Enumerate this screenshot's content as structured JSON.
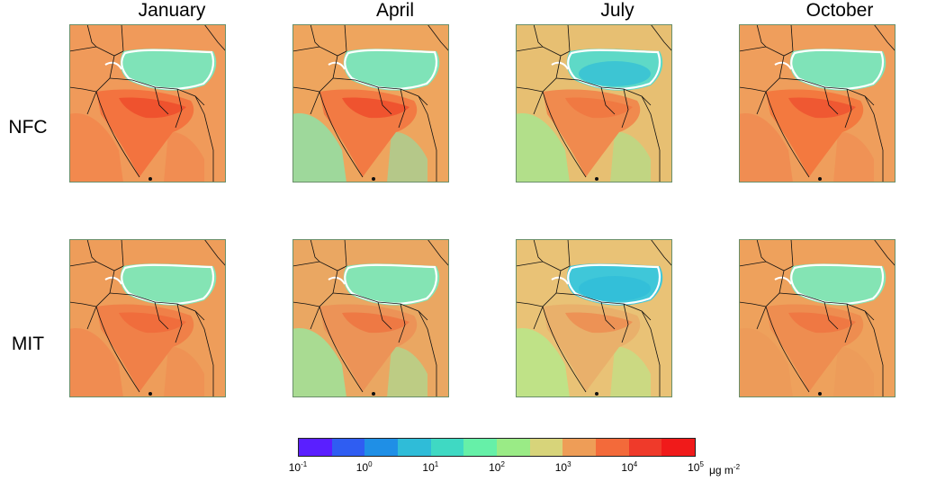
{
  "columns": [
    "January",
    "April",
    "July",
    "October"
  ],
  "rows": [
    "NFC",
    "MIT"
  ],
  "colorbar": {
    "colors": [
      "#5a1fff",
      "#2f5df2",
      "#1f8fe6",
      "#2fbcd8",
      "#3fd9c3",
      "#66f0a8",
      "#9aeb86",
      "#d7d47a",
      "#ee9d57",
      "#f36a3a",
      "#ef3a2a",
      "#f01a1a"
    ],
    "ticks": [
      {
        "base": "10",
        "exp": "-1"
      },
      {
        "base": "10",
        "exp": "0"
      },
      {
        "base": "10",
        "exp": "1"
      },
      {
        "base": "10",
        "exp": "2"
      },
      {
        "base": "10",
        "exp": "3"
      },
      {
        "base": "10",
        "exp": "4"
      },
      {
        "base": "10",
        "exp": "5"
      }
    ],
    "unit_prefix": "μg m",
    "unit_exp": "-2"
  }
}
